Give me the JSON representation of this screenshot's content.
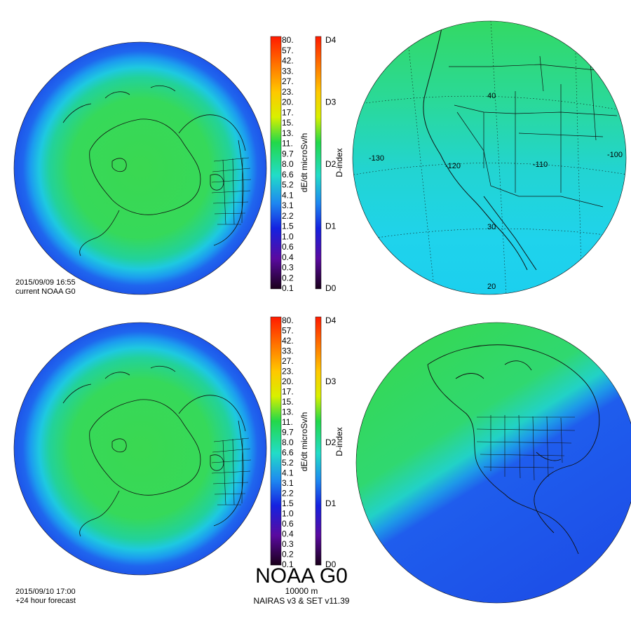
{
  "panels": {
    "top": {
      "date": "2015/09/09 16:55",
      "subtitle": "current NOAA G0"
    },
    "bottom": {
      "date": "2015/09/10 17:00",
      "subtitle": "+24 hour forecast"
    }
  },
  "colorbar": {
    "label": "dE/dt microSv/h",
    "ticks": [
      "80.",
      "57.",
      "42.",
      "33.",
      "27.",
      "23.",
      "20.",
      "17.",
      "15.",
      "13.",
      "11.",
      "9.7",
      "8.0",
      "6.6",
      "5.2",
      "4.1",
      "3.1",
      "2.2",
      "1.5",
      "1.0",
      "0.6",
      "0.4",
      "0.3",
      "0.2",
      "0.1"
    ]
  },
  "dindex": {
    "label": "D-index",
    "ticks": [
      "D4",
      "D3",
      "D2",
      "D1",
      "D0"
    ]
  },
  "regional_map": {
    "lat_labels": [
      "40",
      "30",
      "20"
    ],
    "lon_labels": [
      "-130",
      "-120",
      "-110",
      "-100"
    ]
  },
  "footer": {
    "title": "NOAA G0",
    "altitude": "10000 m",
    "model": "NAIRAS v3 & SET v11.39"
  },
  "colors": {
    "green": "#33d94f",
    "cyan": "#22d6e6",
    "blue": "#1f5cf0",
    "deep_blue": "#1a4fe6"
  }
}
